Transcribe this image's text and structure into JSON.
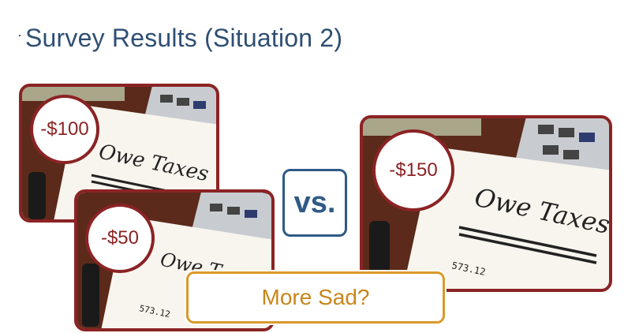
{
  "slide": {
    "title": "Survey Results (Situation 2)",
    "vs_label": "vs.",
    "caption": "More Sad?"
  },
  "photos": [
    {
      "amount": "-$100",
      "note_text": "Owe Taxes"
    },
    {
      "amount": "-$50",
      "note_text": "Owe T"
    },
    {
      "amount": "-$150",
      "note_text": "Owe Taxes"
    }
  ],
  "colors": {
    "title": "#2f4f73",
    "frame": "#8b2324",
    "vs": "#2f5a86",
    "caption": "#c8861c"
  }
}
